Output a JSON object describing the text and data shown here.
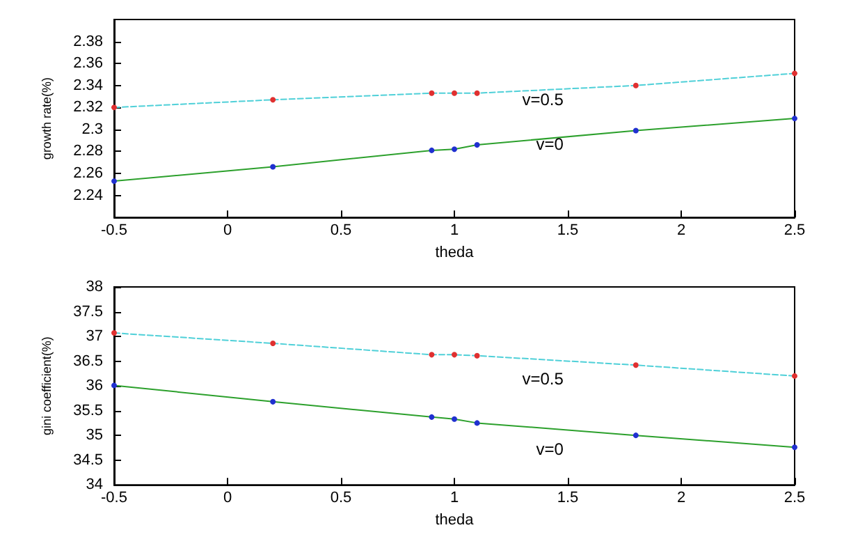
{
  "chart_data": [
    {
      "type": "line",
      "xlabel": "theda",
      "ylabel": "growth rate(%)",
      "x": [
        -0.5,
        0.2,
        0.9,
        1.0,
        1.1,
        1.8,
        2.5
      ],
      "xlim": [
        -0.5,
        2.5
      ],
      "xticks": [
        -0.5,
        0,
        0.5,
        1,
        1.5,
        2,
        2.5
      ],
      "ylim": [
        2.22,
        2.4
      ],
      "yticks": [
        2.24,
        2.26,
        2.28,
        2.3,
        2.32,
        2.34,
        2.36,
        2.38
      ],
      "marker": "circle",
      "series": [
        {
          "name": "v=0.5",
          "color": "#4fd0d8",
          "colors": [
            "#e03030",
            "#e03030",
            "#e03030",
            "#e03030",
            "#e03030",
            "#e03030",
            "#e03030"
          ],
          "line_style": "dashed",
          "values": [
            2.32,
            2.327,
            2.333,
            2.333,
            2.333,
            2.34,
            2.351
          ]
        },
        {
          "name": "v=0",
          "color": "#2ca02c",
          "colors": [
            "#2030d0",
            "#2030d0",
            "#2030d0",
            "#2030d0",
            "#2030d0",
            "#2030d0",
            "#2030d0"
          ],
          "line_style": "solid",
          "values": [
            2.253,
            2.266,
            2.281,
            2.282,
            2.286,
            2.299,
            2.31
          ]
        }
      ]
    },
    {
      "type": "line",
      "xlabel": "theda",
      "ylabel": "gini coefficient(%)",
      "x": [
        -0.5,
        0.2,
        0.9,
        1.0,
        1.1,
        1.8,
        2.5
      ],
      "xlim": [
        -0.5,
        2.5
      ],
      "xticks": [
        -0.5,
        0,
        0.5,
        1,
        1.5,
        2,
        2.5
      ],
      "ylim": [
        34,
        38
      ],
      "yticks": [
        34,
        34.5,
        35,
        35.5,
        36,
        36.5,
        37,
        37.5,
        38
      ],
      "marker": "circle",
      "series": [
        {
          "name": "v=0.5",
          "color": "#4fd0d8",
          "colors": [
            "#e03030",
            "#e03030",
            "#e03030",
            "#e03030",
            "#e03030",
            "#e03030",
            "#e03030"
          ],
          "line_style": "dashed",
          "values": [
            37.07,
            36.86,
            36.63,
            36.63,
            36.61,
            36.42,
            36.2
          ]
        },
        {
          "name": "v=0",
          "color": "#2ca02c",
          "colors": [
            "#2030d0",
            "#2030d0",
            "#2030d0",
            "#2030d0",
            "#2030d0",
            "#2030d0",
            "#2030d0"
          ],
          "line_style": "solid",
          "values": [
            36.01,
            35.68,
            35.37,
            35.33,
            35.25,
            35.0,
            34.76
          ]
        }
      ]
    }
  ]
}
